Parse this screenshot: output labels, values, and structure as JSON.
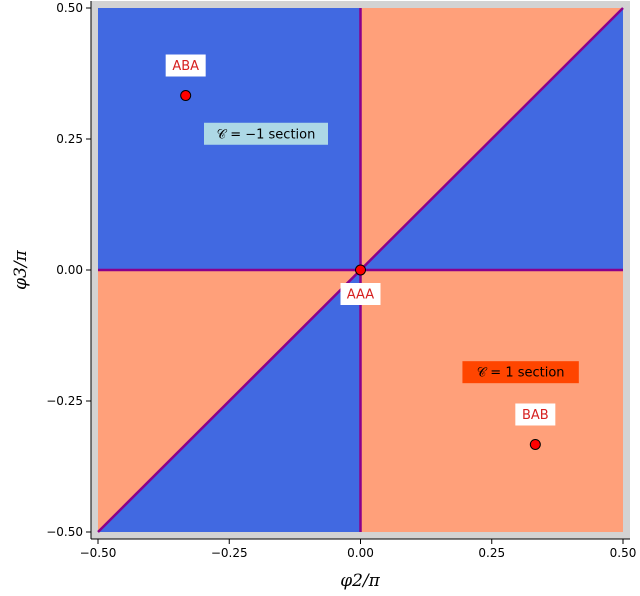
{
  "chart_data": {
    "type": "heatmap",
    "xlabel": "φ2/π",
    "ylabel": "φ3/π",
    "xlim": [
      -0.5,
      0.5
    ],
    "ylim": [
      -0.5,
      0.5
    ],
    "x_ticks": [
      "−0.50",
      "−0.25",
      "0.00",
      "0.25",
      "0.50"
    ],
    "y_ticks": [
      "−0.50",
      "−0.25",
      "0.00",
      "0.25",
      "0.50"
    ],
    "x_tick_values": [
      -0.5,
      -0.25,
      0.0,
      0.25,
      0.5
    ],
    "y_tick_values": [
      -0.5,
      -0.25,
      0.0,
      0.25,
      0.5
    ],
    "grid": false,
    "colors": {
      "minus_section": "#4169e1",
      "plus_section": "#ffa07a",
      "boundary": "#8b008b",
      "frame": "#d3d3d3",
      "point": "#ff0000",
      "minus_label_bg": "#add8e6",
      "plus_label_bg": "#ff4500",
      "point_label": "#d62020"
    },
    "regions": [
      {
        "section": "minus",
        "polygon": [
          [
            -0.5,
            0.0
          ],
          [
            0.0,
            0.0
          ],
          [
            0.0,
            0.5
          ],
          [
            -0.5,
            0.5
          ]
        ]
      },
      {
        "section": "plus",
        "polygon": [
          [
            0.0,
            0.0
          ],
          [
            0.5,
            0.5
          ],
          [
            0.0,
            0.5
          ]
        ]
      },
      {
        "section": "minus",
        "polygon": [
          [
            0.0,
            0.0
          ],
          [
            0.5,
            0.0
          ],
          [
            0.5,
            0.5
          ]
        ]
      },
      {
        "section": "plus",
        "polygon": [
          [
            -0.5,
            -0.5
          ],
          [
            0.0,
            0.0
          ],
          [
            -0.5,
            0.0
          ]
        ]
      },
      {
        "section": "minus",
        "polygon": [
          [
            -0.5,
            -0.5
          ],
          [
            0.0,
            -0.5
          ],
          [
            0.0,
            0.0
          ]
        ]
      },
      {
        "section": "plus",
        "polygon": [
          [
            0.0,
            -0.5
          ],
          [
            0.5,
            -0.5
          ],
          [
            0.5,
            0.0
          ],
          [
            0.0,
            0.0
          ]
        ]
      }
    ],
    "boundaries": [
      {
        "from": [
          0.0,
          -0.5
        ],
        "to": [
          0.0,
          0.5
        ]
      },
      {
        "from": [
          -0.5,
          0.0
        ],
        "to": [
          0.5,
          0.0
        ]
      },
      {
        "from": [
          -0.5,
          -0.5
        ],
        "to": [
          0.5,
          0.5
        ]
      }
    ],
    "points": [
      {
        "label": "ABA",
        "x": -0.333,
        "y": 0.333,
        "label_side": "above"
      },
      {
        "label": "AAA",
        "x": 0.0,
        "y": 0.0,
        "label_side": "below"
      },
      {
        "label": "BAB",
        "x": 0.333,
        "y": -0.333,
        "label_side": "above"
      }
    ],
    "section_labels": [
      {
        "text": "𝒞 = −1 section",
        "x": -0.18,
        "y": 0.26,
        "color_key": "minus_label_bg"
      },
      {
        "text": "𝒞 = 1 section",
        "x": 0.305,
        "y": -0.195,
        "color_key": "plus_label_bg"
      }
    ]
  }
}
